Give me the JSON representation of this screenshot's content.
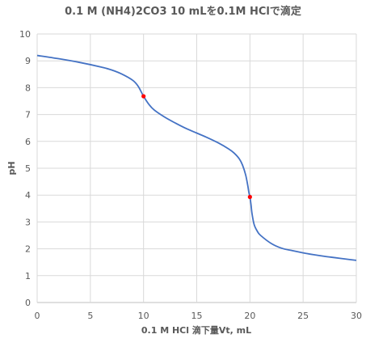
{
  "chart_data": {
    "type": "line",
    "title": "0.1 M (NH4)2CO3 10 mLを0.1M HClで滴定",
    "xlabel": "0.1 M HCl 滴下量Vt, mL",
    "ylabel": "pH",
    "xlim": [
      0,
      30
    ],
    "ylim": [
      0,
      10
    ],
    "xticks": [
      0,
      5,
      10,
      15,
      20,
      25,
      30
    ],
    "yticks": [
      0,
      1,
      2,
      3,
      4,
      5,
      6,
      7,
      8,
      9,
      10
    ],
    "grid": true,
    "legend": "none",
    "series": [
      {
        "color": "#4472c4",
        "x": [
          0,
          2,
          4,
          6,
          7,
          8,
          9,
          9.5,
          10,
          10.5,
          11,
          12,
          13,
          14,
          15,
          16,
          17,
          18,
          18.5,
          19,
          19.3,
          19.6,
          19.8,
          19.9,
          20,
          20.1,
          20.2,
          20.4,
          20.7,
          21,
          22,
          23,
          24,
          25,
          26,
          27,
          28,
          29,
          30
        ],
        "y": [
          9.2,
          9.08,
          8.94,
          8.77,
          8.66,
          8.5,
          8.27,
          8.05,
          7.68,
          7.38,
          7.17,
          6.9,
          6.68,
          6.48,
          6.31,
          6.14,
          5.95,
          5.72,
          5.57,
          5.35,
          5.12,
          4.75,
          4.35,
          4.1,
          3.93,
          3.65,
          3.3,
          2.9,
          2.65,
          2.5,
          2.2,
          2.02,
          1.93,
          1.85,
          1.78,
          1.72,
          1.67,
          1.62,
          1.57
        ]
      }
    ],
    "markers": [
      {
        "x": 10,
        "y": 7.68,
        "color": "#ff0000"
      },
      {
        "x": 20,
        "y": 3.93,
        "color": "#ff0000"
      }
    ]
  }
}
